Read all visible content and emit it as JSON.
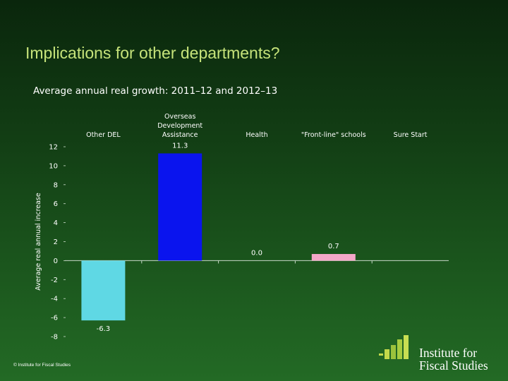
{
  "slide": {
    "title": "Implications for other departments?",
    "subtitle": "Average annual real growth: 2011–12 and 2012–13",
    "footer": "© Institute for Fiscal Studies"
  },
  "logo": {
    "line1": "Institute for",
    "line2": "Fiscal Studies",
    "icon": "ifs-bars-logo-icon"
  },
  "chart_data": {
    "type": "bar",
    "categories": [
      "Other DEL",
      "Overseas Development Assistance",
      "Health",
      "\"Front-line\" schools",
      "Sure Start"
    ],
    "category_label_lines": [
      [
        "Other DEL"
      ],
      [
        "Overseas",
        "Development",
        "Assistance"
      ],
      [
        "Health"
      ],
      [
        "\"Front-line\" schools"
      ],
      [
        "Sure Start"
      ]
    ],
    "values": [
      -6.3,
      11.3,
      0.0,
      0.7,
      null
    ],
    "data_labels": [
      "-6.3",
      "11.3",
      "0.0",
      "0.7",
      ""
    ],
    "colors": [
      "#5fd8e4",
      "#0a14ee",
      "#1e6b20",
      "#f4a7c8",
      "#1e6b20"
    ],
    "title": "",
    "xlabel": "",
    "ylabel": "Average real annual increase",
    "ylim": [
      -8,
      12
    ],
    "yticks": [
      12,
      10,
      8,
      6,
      4,
      2,
      0,
      -2,
      -4,
      -6,
      -8
    ],
    "grid": false
  }
}
